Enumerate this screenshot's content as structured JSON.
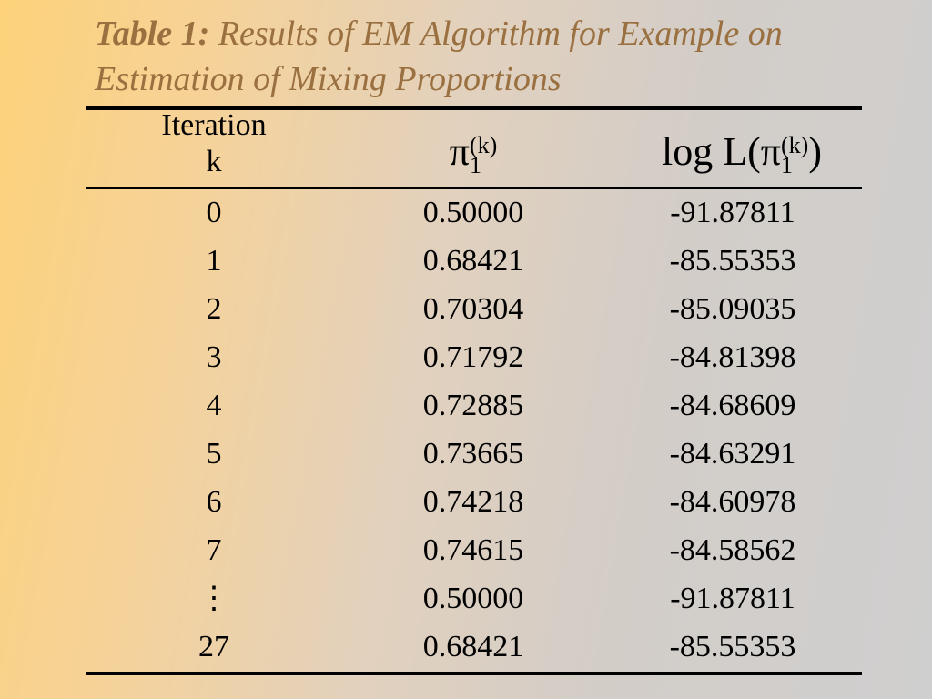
{
  "title": {
    "number": "Table 1:",
    "text": " Results of EM Algorithm for Example on Estimation of Mixing Proportions"
  },
  "table": {
    "headers": {
      "iteration_line1": "Iteration",
      "iteration_line2": "k",
      "pi_symbol": "π",
      "pi_sup": "(k)",
      "pi_sub": "1",
      "logl_prefix": "log L(",
      "logl_pi": "π",
      "logl_sup": "(k)",
      "logl_sub": "1",
      "logl_suffix": ")"
    },
    "rows": [
      {
        "k": "0",
        "pi": "0.50000",
        "logl": "-91.87811"
      },
      {
        "k": "1",
        "pi": "0.68421",
        "logl": "-85.55353"
      },
      {
        "k": "2",
        "pi": "0.70304",
        "logl": "-85.09035"
      },
      {
        "k": "3",
        "pi": "0.71792",
        "logl": "-84.81398"
      },
      {
        "k": "4",
        "pi": "0.72885",
        "logl": "-84.68609"
      },
      {
        "k": "5",
        "pi": "0.73665",
        "logl": "-84.63291"
      },
      {
        "k": "6",
        "pi": "0.74218",
        "logl": "-84.60978"
      },
      {
        "k": "7",
        "pi": "0.74615",
        "logl": "-84.58562"
      },
      {
        "k": "⋮",
        "pi": "0.50000",
        "logl": "-91.87811"
      },
      {
        "k": "27",
        "pi": "0.68421",
        "logl": "-85.55353"
      }
    ]
  }
}
